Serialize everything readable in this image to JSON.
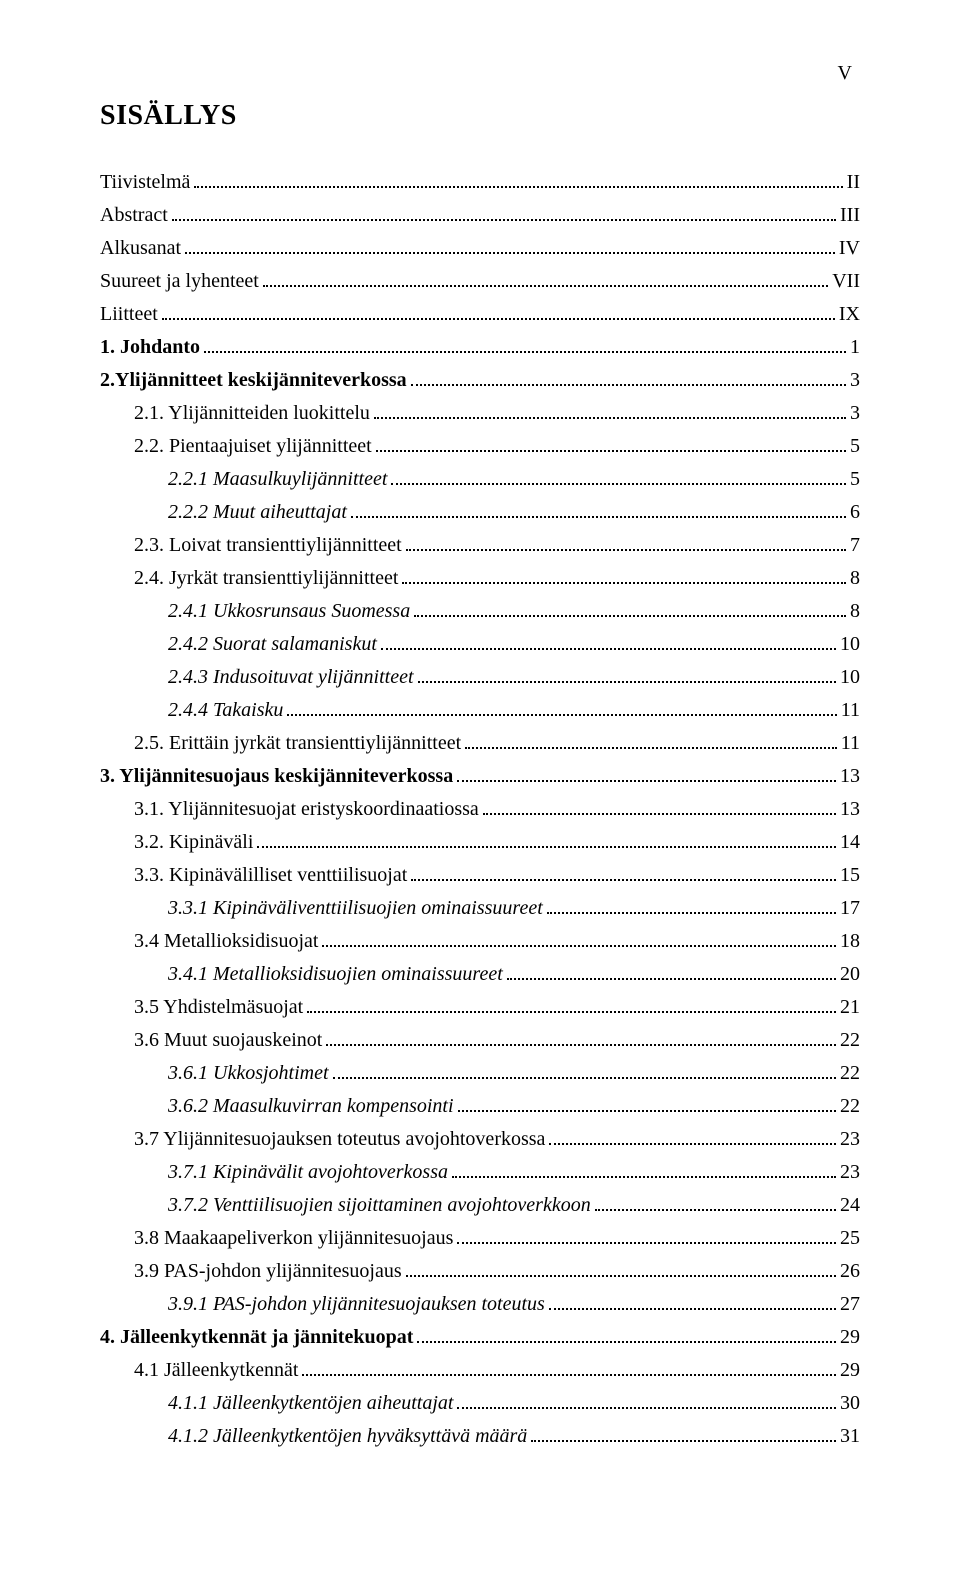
{
  "pageNumber": "V",
  "title": "SISÄLLYS",
  "colors": {
    "background": "#ffffff",
    "text": "#000000",
    "dots": "#000000"
  },
  "typography": {
    "font_family": "Times New Roman",
    "title_fontsize_pt": 21,
    "body_fontsize_pt": 15,
    "line_height": 1.65
  },
  "entries": [
    {
      "label": "Tiivistelmä",
      "page": "II",
      "indent": 0,
      "bold": false,
      "italic": false
    },
    {
      "label": "Abstract",
      "page": "III",
      "indent": 0,
      "bold": false,
      "italic": false
    },
    {
      "label": "Alkusanat",
      "page": "IV",
      "indent": 0,
      "bold": false,
      "italic": false
    },
    {
      "label": "Suureet ja lyhenteet",
      "page": "VII",
      "indent": 0,
      "bold": false,
      "italic": false
    },
    {
      "label": "Liitteet",
      "page": "IX",
      "indent": 0,
      "bold": false,
      "italic": false
    },
    {
      "label": "1. Johdanto",
      "page": "1",
      "indent": 0,
      "bold": true,
      "italic": false
    },
    {
      "label": "2.Ylijännitteet keskijänniteverkossa",
      "page": "3",
      "indent": 0,
      "bold": true,
      "italic": false
    },
    {
      "label": "2.1. Ylijännitteiden luokittelu",
      "page": "3",
      "indent": 1,
      "bold": false,
      "italic": false
    },
    {
      "label": "2.2. Pientaajuiset ylijännitteet",
      "page": "5",
      "indent": 1,
      "bold": false,
      "italic": false
    },
    {
      "label": "2.2.1 Maasulkuylijännitteet",
      "page": "5",
      "indent": 2,
      "bold": false,
      "italic": true
    },
    {
      "label": "2.2.2 Muut aiheuttajat",
      "page": "6",
      "indent": 2,
      "bold": false,
      "italic": true
    },
    {
      "label": "2.3. Loivat transienttiylijännitteet",
      "page": "7",
      "indent": 1,
      "bold": false,
      "italic": false
    },
    {
      "label": "2.4. Jyrkät transienttiylijännitteet",
      "page": "8",
      "indent": 1,
      "bold": false,
      "italic": false
    },
    {
      "label": "2.4.1 Ukkosrunsaus Suomessa",
      "page": "8",
      "indent": 2,
      "bold": false,
      "italic": true
    },
    {
      "label": "2.4.2 Suorat salamaniskut",
      "page": "10",
      "indent": 2,
      "bold": false,
      "italic": true
    },
    {
      "label": "2.4.3 Indusoituvat ylijännitteet",
      "page": "10",
      "indent": 2,
      "bold": false,
      "italic": true
    },
    {
      "label": "2.4.4 Takaisku",
      "page": "11",
      "indent": 2,
      "bold": false,
      "italic": true
    },
    {
      "label": "2.5. Erittäin jyrkät transienttiylijännitteet",
      "page": "11",
      "indent": 1,
      "bold": false,
      "italic": false
    },
    {
      "label": "3. Ylijännitesuojaus keskijänniteverkossa",
      "page": "13",
      "indent": 0,
      "bold": true,
      "italic": false
    },
    {
      "label": "3.1. Ylijännitesuojat eristyskoordinaatiossa",
      "page": "13",
      "indent": 1,
      "bold": false,
      "italic": false
    },
    {
      "label": "3.2. Kipinäväli",
      "page": "14",
      "indent": 1,
      "bold": false,
      "italic": false
    },
    {
      "label": "3.3. Kipinävälilliset venttiilisuojat",
      "page": "15",
      "indent": 1,
      "bold": false,
      "italic": false
    },
    {
      "label": "3.3.1 Kipinäväliventtiilisuojien ominaissuureet",
      "page": "17",
      "indent": 2,
      "bold": false,
      "italic": true
    },
    {
      "label": "3.4 Metallioksidisuojat",
      "page": "18",
      "indent": 1,
      "bold": false,
      "italic": false
    },
    {
      "label": "3.4.1 Metallioksidisuojien ominaissuureet",
      "page": "20",
      "indent": 2,
      "bold": false,
      "italic": true
    },
    {
      "label": "3.5 Yhdistelmäsuojat",
      "page": "21",
      "indent": 1,
      "bold": false,
      "italic": false
    },
    {
      "label": "3.6 Muut suojauskeinot",
      "page": "22",
      "indent": 1,
      "bold": false,
      "italic": false
    },
    {
      "label": "3.6.1 Ukkosjohtimet",
      "page": "22",
      "indent": 2,
      "bold": false,
      "italic": true
    },
    {
      "label": "3.6.2 Maasulkuvirran kompensointi",
      "page": "22",
      "indent": 2,
      "bold": false,
      "italic": true
    },
    {
      "label": "3.7 Ylijännitesuojauksen toteutus avojohtoverkossa",
      "page": "23",
      "indent": 1,
      "bold": false,
      "italic": false
    },
    {
      "label": "3.7.1 Kipinävälit avojohtoverkossa",
      "page": "23",
      "indent": 2,
      "bold": false,
      "italic": true
    },
    {
      "label": "3.7.2 Venttiilisuojien sijoittaminen avojohtoverkkoon",
      "page": "24",
      "indent": 2,
      "bold": false,
      "italic": true
    },
    {
      "label": "3.8 Maakaapeliverkon ylijännitesuojaus",
      "page": "25",
      "indent": 1,
      "bold": false,
      "italic": false
    },
    {
      "label": "3.9 PAS-johdon ylijännitesuojaus",
      "page": "26",
      "indent": 1,
      "bold": false,
      "italic": false
    },
    {
      "label": "3.9.1 PAS-johdon ylijännitesuojauksen toteutus",
      "page": "27",
      "indent": 2,
      "bold": false,
      "italic": true
    },
    {
      "label": "4. Jälleenkytkennät ja jännitekuopat",
      "page": "29",
      "indent": 0,
      "bold": true,
      "italic": false
    },
    {
      "label": "4.1 Jälleenkytkennät",
      "page": "29",
      "indent": 1,
      "bold": false,
      "italic": false
    },
    {
      "label": "4.1.1 Jälleenkytkentöjen aiheuttajat",
      "page": "30",
      "indent": 2,
      "bold": false,
      "italic": true
    },
    {
      "label": "4.1.2 Jälleenkytkentöjen hyväksyttävä määrä",
      "page": "31",
      "indent": 2,
      "bold": false,
      "italic": true
    }
  ]
}
